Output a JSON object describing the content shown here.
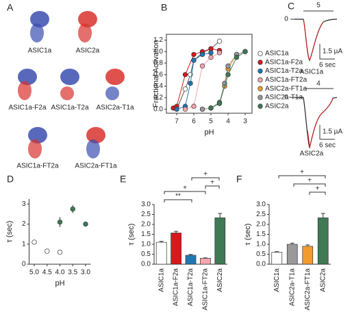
{
  "panel_a": {
    "label": "A",
    "names": [
      "ASIC1a",
      "ASIC2a",
      "ASIC1a-F2a",
      "ASIC1a-T2a",
      "ASIC2a-T1a",
      "ASIC1a-FT2a",
      "ASIC2a-FT1a"
    ]
  },
  "panel_c": {
    "label": "C",
    "traces": [
      {
        "ph": "5",
        "zero": "0",
        "current": "1.5 µA",
        "time": "6 sec",
        "name": "ASIC1a"
      },
      {
        "ph": "4",
        "zero": "0",
        "current": "1.5 µA",
        "time": "6 sec",
        "name": "ASIC2a"
      }
    ]
  },
  "chart_data": [
    {
      "type": "line",
      "label": "B",
      "ylabel": "Fractional Activation",
      "xlabel": "pH",
      "xlim": [
        7.6,
        2.6
      ],
      "xticks": [
        7,
        6,
        5,
        4,
        3
      ],
      "ylim": [
        -0.07,
        1.3
      ],
      "yticks": [
        {
          "value": 0,
          "label": "0.0"
        },
        0.2,
        0.4,
        0.6,
        0.8,
        {
          "value": 1,
          "label": "1.0"
        },
        1.2
      ],
      "series": [
        {
          "name": "ASIC1a",
          "color": "#ffffff",
          "x": [
            7,
            6.5,
            6.2,
            6,
            5.5,
            5,
            4.5
          ],
          "values": [
            0,
            0.35,
            0.6,
            0.85,
            0.98,
            1.05,
            1.18
          ]
        },
        {
          "name": "ASIC1a-F2a",
          "color": "#d7191c",
          "x": [
            7.2,
            7,
            6.5,
            6,
            5.5,
            5,
            4.5
          ],
          "values": [
            0.02,
            0.05,
            0.6,
            0.95,
            1.0,
            1.05,
            1.02
          ]
        },
        {
          "name": "ASIC1a-T2a",
          "color": "#1f78b4",
          "x": [
            7,
            6.5,
            6.2,
            6,
            5.5,
            5
          ],
          "values": [
            0,
            0.05,
            0.45,
            0.85,
            0.95,
            0.98
          ]
        },
        {
          "name": "ASIC1a-FT2a",
          "color": "#f4a6b0",
          "x": [
            6.5,
            6,
            5.5,
            5,
            4.5
          ],
          "values": [
            0,
            0.05,
            0.75,
            0.9,
            0.98
          ]
        },
        {
          "name": "ASIC2a-FT1a",
          "color": "#f39c2b",
          "x": [
            5.5,
            5,
            4.5,
            4.2,
            4,
            3.5,
            3
          ],
          "values": [
            0,
            0.02,
            0.1,
            0.4,
            0.7,
            0.95,
            1.0
          ]
        },
        {
          "name": "ASIC2a-T1a",
          "color": "#999999",
          "x": [
            5.5,
            5,
            4.5,
            4.2,
            4,
            3.5,
            3
          ],
          "values": [
            0,
            0.02,
            0.12,
            0.45,
            0.75,
            0.95,
            1.0
          ]
        },
        {
          "name": "ASIC2a",
          "color": "#3f7a55",
          "x": [
            5,
            4.5,
            4,
            3.5,
            3
          ],
          "values": [
            0.02,
            0.1,
            0.6,
            0.9,
            1.0
          ]
        }
      ]
    },
    {
      "type": "scatter",
      "label": "D",
      "ylabel": "τ (sec)",
      "xlabel": "pH",
      "xlim": [
        5.2,
        2.8
      ],
      "xticks": [
        {
          "value": 5,
          "label": "5.0"
        },
        4.5,
        {
          "value": 4,
          "label": "4.0"
        },
        3.5,
        {
          "value": 3,
          "label": "3.0"
        }
      ],
      "ylim": [
        0,
        3.25
      ],
      "yticks": [
        0,
        1,
        2,
        3
      ],
      "series": [
        {
          "color": "#ffffff",
          "x": [
            5,
            4.5,
            4
          ],
          "values": [
            1.1,
            0.65,
            0.6
          ],
          "errors": [
            0.03,
            0.03,
            0.03
          ]
        },
        {
          "color": "#3f7a55",
          "x": [
            4,
            3.5,
            3
          ],
          "values": [
            2.1,
            2.75,
            2.0
          ],
          "errors": [
            0.25,
            0.2,
            0.05
          ]
        }
      ]
    },
    {
      "type": "bar",
      "label": "E",
      "ylabel": "τ (sec)",
      "categories": [
        "ASIC1a",
        "ASIC1a-F2a",
        "ASIC1a-T2a",
        "ASIC1a-FT2a",
        "ASIC2a"
      ],
      "values": [
        1.1,
        1.57,
        0.45,
        0.3,
        2.33
      ],
      "errors": [
        0.05,
        0.08,
        0.04,
        0.02,
        0.22
      ],
      "colors": [
        "#ffffff",
        "#d7191c",
        "#1f78b4",
        "#f4a6b0",
        "#3f7a55"
      ],
      "ylim": [
        0,
        3
      ],
      "yticks": [
        {
          "value": 0,
          "label": "0.0"
        },
        0.5,
        {
          "value": 1,
          "label": "1.0"
        },
        1.5,
        {
          "value": 2,
          "label": "2.0"
        },
        2.5,
        {
          "value": 3,
          "label": "3.0"
        }
      ],
      "annotations": [
        "**",
        "+",
        "+",
        "+"
      ]
    },
    {
      "type": "bar",
      "label": "F",
      "ylabel": "τ (sec)",
      "categories": [
        "ASIC1a",
        "ASIC2a-T1a",
        "ASIC2a-FT1a",
        "ASIC2a"
      ],
      "values": [
        0.6,
        1.0,
        0.9,
        2.33
      ],
      "errors": [
        0.03,
        0.06,
        0.07,
        0.22
      ],
      "colors": [
        "#ffffff",
        "#999999",
        "#f39c2b",
        "#3f7a55"
      ],
      "ylim": [
        0,
        3
      ],
      "yticks": [
        {
          "value": 0,
          "label": "0.0"
        },
        0.5,
        {
          "value": 1,
          "label": "1.0"
        },
        1.5,
        {
          "value": 2,
          "label": "2.0"
        },
        2.5,
        {
          "value": 3,
          "label": "3.0"
        }
      ],
      "annotations": [
        "+",
        "+",
        "+"
      ]
    }
  ]
}
